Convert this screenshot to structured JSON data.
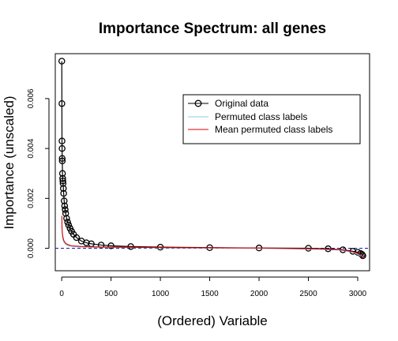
{
  "chart_data": {
    "type": "scatter",
    "title": "Importance Spectrum: all genes",
    "xlabel": "(Ordered) Variable",
    "ylabel": "Importance (unscaled)",
    "xlim": [
      -65,
      3120
    ],
    "ylim": [
      -0.0009,
      0.0078
    ],
    "xticks": [
      0,
      500,
      1000,
      1500,
      2000,
      2500,
      3000
    ],
    "yticks": [
      0.0,
      0.002,
      0.004,
      0.006
    ],
    "ytick_labels": [
      "0.000",
      "0.002",
      "0.004",
      "0.006"
    ],
    "reference_line": {
      "y": 0,
      "style": "dashed",
      "color": "#1a1aa0"
    },
    "grid": false,
    "legend_position": "top-right",
    "legend": [
      {
        "label": "Original data",
        "color": "#000000",
        "marker": "circle-line"
      },
      {
        "label": "Permuted class labels",
        "color": "#87ceeb",
        "marker": "line"
      },
      {
        "label": "Mean permuted class labels",
        "color": "#dd0000",
        "marker": "line"
      }
    ],
    "series": [
      {
        "name": "Original data",
        "style": "circles-connected",
        "color": "#000000",
        "points": [
          [
            1,
            0.0075
          ],
          [
            2,
            0.0058
          ],
          [
            3,
            0.0043
          ],
          [
            4,
            0.004
          ],
          [
            5,
            0.0036
          ],
          [
            6,
            0.0035
          ],
          [
            8,
            0.003
          ],
          [
            10,
            0.0028
          ],
          [
            12,
            0.0027
          ],
          [
            14,
            0.0026
          ],
          [
            17,
            0.0024
          ],
          [
            20,
            0.0022
          ],
          [
            25,
            0.0019
          ],
          [
            30,
            0.0017
          ],
          [
            35,
            0.00155
          ],
          [
            40,
            0.0014
          ],
          [
            50,
            0.0012
          ],
          [
            60,
            0.00105
          ],
          [
            70,
            0.00093
          ],
          [
            85,
            0.0008
          ],
          [
            100,
            0.00068
          ],
          [
            120,
            0.00056
          ],
          [
            150,
            0.00043
          ],
          [
            200,
            0.00029
          ],
          [
            250,
            0.00022
          ],
          [
            300,
            0.00018
          ],
          [
            400,
            0.00013
          ],
          [
            500,
            0.0001
          ],
          [
            700,
            7e-05
          ],
          [
            1000,
            4.5e-05
          ],
          [
            1500,
            2.5e-05
          ],
          [
            2000,
            1.2e-05
          ],
          [
            2500,
            2e-06
          ],
          [
            2700,
            -2e-05
          ],
          [
            2850,
            -6e-05
          ],
          [
            2950,
            -0.00012
          ],
          [
            3000,
            -0.00016
          ],
          [
            3030,
            -0.00021
          ],
          [
            3045,
            -0.00025
          ],
          [
            3052,
            -0.0003
          ]
        ]
      },
      {
        "name": "Permuted class labels",
        "style": "line",
        "color": "#87ceeb",
        "points": [
          [
            1,
            0.0009
          ],
          [
            5,
            0.0006
          ],
          [
            10,
            0.0004
          ],
          [
            20,
            0.00025
          ],
          [
            40,
            0.00015
          ],
          [
            80,
            9e-05
          ],
          [
            150,
            6e-05
          ],
          [
            300,
            4e-05
          ],
          [
            1000,
            2e-05
          ],
          [
            2000,
            0.0
          ],
          [
            2800,
            -6e-05
          ],
          [
            2950,
            -0.00015
          ],
          [
            3052,
            -0.00035
          ]
        ]
      },
      {
        "name": "Mean permuted class labels",
        "style": "line",
        "color": "#dd0000",
        "points": [
          [
            1,
            0.0013
          ],
          [
            3,
            0.0009
          ],
          [
            6,
            0.00065
          ],
          [
            10,
            0.0005
          ],
          [
            20,
            0.00032
          ],
          [
            40,
            0.0002
          ],
          [
            60,
            0.00015
          ],
          [
            100,
            0.0001
          ],
          [
            200,
            7e-05
          ],
          [
            400,
            5e-05
          ],
          [
            1000,
            3e-05
          ],
          [
            2000,
            1e-05
          ],
          [
            2600,
            -2e-05
          ],
          [
            2850,
            -7e-05
          ],
          [
            2950,
            -0.00014
          ],
          [
            3020,
            -0.00022
          ],
          [
            3052,
            -0.0004
          ]
        ]
      }
    ]
  }
}
